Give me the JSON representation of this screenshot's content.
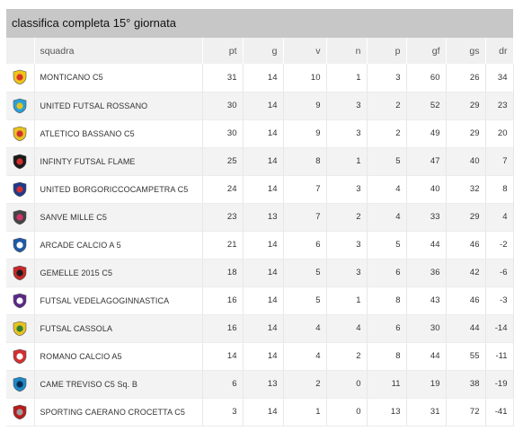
{
  "title": "classifica completa 15° giornata",
  "columns": {
    "team": "squadra",
    "pt": "pt",
    "g": "g",
    "v": "v",
    "n": "n",
    "p": "p",
    "gf": "gf",
    "gs": "gs",
    "dr": "dr"
  },
  "rows": [
    {
      "team": "MONTICANO C5",
      "pt": "31",
      "g": "14",
      "v": "10",
      "n": "1",
      "p": "3",
      "gf": "60",
      "gs": "26",
      "dr": "34",
      "logo_icon": "monticano-logo-icon",
      "c1": "#f0c419",
      "c2": "#d6342b"
    },
    {
      "team": "UNITED FUTSAL ROSSANO",
      "pt": "30",
      "g": "14",
      "v": "9",
      "n": "3",
      "p": "2",
      "gf": "52",
      "gs": "29",
      "dr": "23",
      "logo_icon": "rossano-logo-icon",
      "c1": "#2aa0d8",
      "c2": "#e8c21f"
    },
    {
      "team": "ATLETICO BASSANO C5",
      "pt": "30",
      "g": "14",
      "v": "9",
      "n": "3",
      "p": "2",
      "gf": "49",
      "gs": "29",
      "dr": "20",
      "logo_icon": "bassano-logo-icon",
      "c1": "#e8c21f",
      "c2": "#d32f2f"
    },
    {
      "team": "INFINTY FUTSAL FLAME",
      "pt": "25",
      "g": "14",
      "v": "8",
      "n": "1",
      "p": "5",
      "gf": "47",
      "gs": "40",
      "dr": "7",
      "logo_icon": "flame-logo-icon",
      "c1": "#1a1a1a",
      "c2": "#d32f2f"
    },
    {
      "team": "UNITED BORGORICCOCAMPETRA C5",
      "pt": "24",
      "g": "14",
      "v": "7",
      "n": "3",
      "p": "4",
      "gf": "40",
      "gs": "32",
      "dr": "8",
      "logo_icon": "borgoricco-logo-icon",
      "c1": "#1f3a8a",
      "c2": "#d32f2f"
    },
    {
      "team": "SANVE MILLE C5",
      "pt": "23",
      "g": "13",
      "v": "7",
      "n": "2",
      "p": "4",
      "gf": "33",
      "gs": "29",
      "dr": "4",
      "logo_icon": "sanve-logo-icon",
      "c1": "#444444",
      "c2": "#d6336c"
    },
    {
      "team": "ARCADE CALCIO A 5",
      "pt": "21",
      "g": "14",
      "v": "6",
      "n": "3",
      "p": "5",
      "gf": "44",
      "gs": "46",
      "dr": "-2",
      "logo_icon": "arcade-logo-icon",
      "c1": "#1e5aa8",
      "c2": "#ffffff"
    },
    {
      "team": "GEMELLE 2015 C5",
      "pt": "18",
      "g": "14",
      "v": "5",
      "n": "3",
      "p": "6",
      "gf": "36",
      "gs": "42",
      "dr": "-6",
      "logo_icon": "gemelle-logo-icon",
      "c1": "#c62828",
      "c2": "#1a1a1a"
    },
    {
      "team": "FUTSAL VEDELAGOGINNASTICA",
      "pt": "16",
      "g": "14",
      "v": "5",
      "n": "1",
      "p": "8",
      "gf": "43",
      "gs": "46",
      "dr": "-3",
      "logo_icon": "vedelago-logo-icon",
      "c1": "#5b2a86",
      "c2": "#ffffff"
    },
    {
      "team": "FUTSAL CASSOLA",
      "pt": "16",
      "g": "14",
      "v": "4",
      "n": "4",
      "p": "6",
      "gf": "30",
      "gs": "44",
      "dr": "-14",
      "logo_icon": "cassola-logo-icon",
      "c1": "#e8c21f",
      "c2": "#2e7d32"
    },
    {
      "team": "ROMANO CALCIO A5",
      "pt": "14",
      "g": "14",
      "v": "4",
      "n": "2",
      "p": "8",
      "gf": "44",
      "gs": "55",
      "dr": "-11",
      "logo_icon": "romano-logo-icon",
      "c1": "#d32f2f",
      "c2": "#ffffff"
    },
    {
      "team": "CAME TREVISO C5 Sq. B",
      "pt": "6",
      "g": "13",
      "v": "2",
      "n": "0",
      "p": "11",
      "gf": "19",
      "gs": "38",
      "dr": "-19",
      "logo_icon": "treviso-logo-icon",
      "c1": "#1e88c9",
      "c2": "#0d2b4e"
    },
    {
      "team": "SPORTING CAERANO CROCETTA C5",
      "pt": "3",
      "g": "14",
      "v": "1",
      "n": "0",
      "p": "13",
      "gf": "31",
      "gs": "72",
      "dr": "-41",
      "logo_icon": "caerano-logo-icon",
      "c1": "#b71c1c",
      "c2": "#9e9e9e"
    }
  ]
}
